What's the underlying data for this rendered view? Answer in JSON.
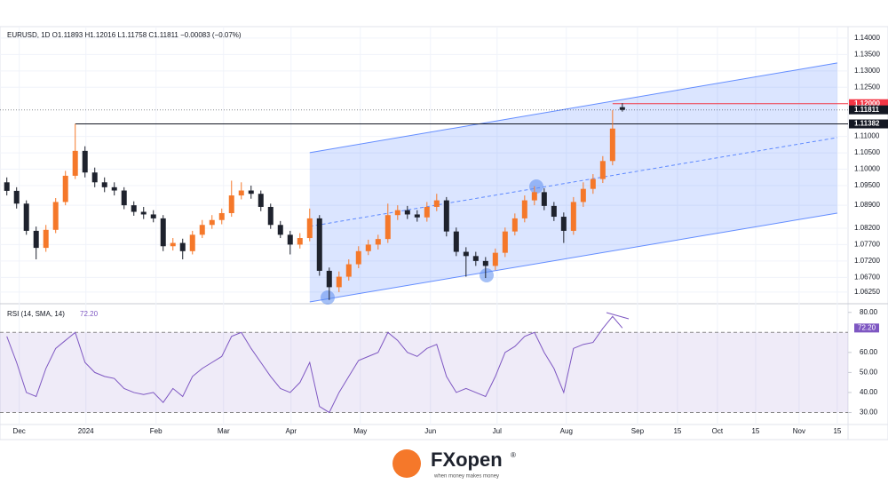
{
  "chart_data": {
    "type": "candlestick",
    "header": "EURUSD, 1D  O1.11893  H1.12016  L1.11758  C1.11811  −0.00083 (−0.07%)",
    "open": [
      1.096,
      1.0934,
      1.0895,
      1.0812,
      1.076,
      1.0815,
      1.09,
      1.098,
      1.1056,
      1.099,
      1.096,
      1.0945,
      1.0935,
      1.089,
      1.087,
      1.0862,
      1.085,
      1.0765,
      1.0775,
      1.075,
      1.08,
      1.083,
      1.0845,
      1.0866,
      1.092,
      1.0935,
      1.0925,
      1.0885,
      1.083,
      1.08,
      1.077,
      1.079,
      1.085,
      1.069,
      1.064,
      1.0672,
      1.071,
      1.075,
      1.077,
      1.0787,
      1.086,
      1.0875,
      1.0862,
      1.0853,
      1.0885,
      1.0905,
      1.081,
      1.0748,
      1.0735,
      1.072,
      1.0705,
      1.0745,
      1.081,
      1.085,
      1.0905,
      1.093,
      1.0888,
      1.0855,
      1.0812,
      1.09,
      1.094,
      1.097,
      1.1025,
      1.11893
    ],
    "high": [
      1.0975,
      1.0945,
      1.0905,
      1.0825,
      1.083,
      1.0912,
      1.0995,
      1.11382,
      1.107,
      1.1005,
      1.0975,
      1.096,
      1.0945,
      1.0902,
      1.0885,
      1.0875,
      1.086,
      1.079,
      1.0788,
      1.0812,
      1.0845,
      1.086,
      1.088,
      1.0965,
      1.096,
      1.095,
      1.0935,
      1.0895,
      1.0842,
      1.0812,
      1.0805,
      1.088,
      1.086,
      1.07,
      1.0688,
      1.0725,
      1.0765,
      1.0785,
      1.08,
      1.0895,
      1.089,
      1.0888,
      1.0875,
      1.09,
      1.0925,
      1.0915,
      1.0822,
      1.0762,
      1.0748,
      1.0732,
      1.0758,
      1.0822,
      1.0865,
      1.092,
      1.0948,
      1.0942,
      1.09,
      1.0868,
      1.0915,
      1.096,
      1.0985,
      1.104,
      1.118,
      1.12016
    ],
    "low": [
      1.092,
      1.088,
      1.08,
      1.0725,
      1.0748,
      1.0805,
      1.089,
      1.097,
      1.0975,
      1.0945,
      1.093,
      1.092,
      1.0878,
      1.0858,
      1.0848,
      1.0838,
      1.075,
      1.0752,
      1.0725,
      1.074,
      1.079,
      1.0818,
      1.0832,
      1.0855,
      1.0908,
      1.091,
      1.0872,
      1.0818,
      1.079,
      1.074,
      1.0758,
      1.078,
      1.0675,
      1.0601,
      1.0625,
      1.066,
      1.0698,
      1.0738,
      1.0755,
      1.0775,
      1.0845,
      1.0848,
      1.084,
      1.084,
      1.0872,
      1.0795,
      1.0735,
      1.0672,
      1.0705,
      1.0668,
      1.0692,
      1.0732,
      1.0798,
      1.0838,
      1.089,
      1.0875,
      1.0842,
      1.0775,
      1.08,
      1.0885,
      1.0925,
      1.0958,
      1.1012,
      1.11758
    ],
    "close": [
      1.0934,
      1.0895,
      1.0812,
      1.076,
      1.0815,
      1.09,
      1.098,
      1.1056,
      1.099,
      1.096,
      1.0945,
      1.0935,
      1.089,
      1.087,
      1.0862,
      1.085,
      1.0765,
      1.0775,
      1.075,
      1.08,
      1.083,
      1.0845,
      1.0866,
      1.092,
      1.0935,
      1.0925,
      1.0885,
      1.083,
      1.08,
      1.077,
      1.079,
      1.085,
      1.069,
      1.064,
      1.0672,
      1.071,
      1.075,
      1.077,
      1.0787,
      1.086,
      1.0875,
      1.0862,
      1.0853,
      1.0885,
      1.0905,
      1.081,
      1.0748,
      1.0735,
      1.072,
      1.0705,
      1.0745,
      1.081,
      1.085,
      1.0905,
      1.093,
      1.0888,
      1.0855,
      1.0812,
      1.09,
      1.094,
      1.097,
      1.1025,
      1.1124,
      1.11811
    ],
    "up_color": "#f5782a",
    "down_color": "#1e222d",
    "xlim": [
      -0.7,
      86.1
    ],
    "xticks": [
      {
        "value": 1.27,
        "label": "Dec"
      },
      {
        "value": 8.09,
        "label": "2024"
      },
      {
        "value": 15.27,
        "label": "Feb"
      },
      {
        "value": 22.18,
        "label": "Mar"
      },
      {
        "value": 29.09,
        "label": "Apr"
      },
      {
        "value": 36.18,
        "label": "May"
      },
      {
        "value": 43.36,
        "label": "Jun"
      },
      {
        "value": 50.18,
        "label": "Jul"
      },
      {
        "value": 57.27,
        "label": "Aug"
      },
      {
        "value": 64.55,
        "label": "Sep"
      },
      {
        "value": 68.64,
        "label": "15"
      },
      {
        "value": 72.73,
        "label": "Oct"
      },
      {
        "value": 76.64,
        "label": "15"
      },
      {
        "value": 81.09,
        "label": "Nov"
      },
      {
        "value": 85.0,
        "label": "15"
      }
    ],
    "ylim": [
      1.0595,
      1.1435
    ],
    "yticks": [
      {
        "value": 1.14,
        "label": "1.14000"
      },
      {
        "value": 1.135,
        "label": "1.13500"
      },
      {
        "value": 1.13,
        "label": "1.13000"
      },
      {
        "value": 1.125,
        "label": "1.12500"
      },
      {
        "value": 1.11,
        "label": "1.11000"
      },
      {
        "value": 1.105,
        "label": "1.10500"
      },
      {
        "value": 1.1,
        "label": "1.10000"
      },
      {
        "value": 1.095,
        "label": "1.09500"
      },
      {
        "value": 1.089,
        "label": "1.08900"
      },
      {
        "value": 1.082,
        "label": "1.08200"
      },
      {
        "value": 1.077,
        "label": "1.07700"
      },
      {
        "value": 1.072,
        "label": "1.07200"
      },
      {
        "value": 1.067,
        "label": "1.06700"
      },
      {
        "value": 1.0625,
        "label": "1.06250"
      }
    ],
    "price_labels": [
      {
        "value": 1.12,
        "label": "1.12000",
        "color": "#f23645",
        "start": 62,
        "line": "solid"
      },
      {
        "value": 1.11811,
        "label": "1.11811",
        "color": "#131722",
        "start": -0.7,
        "line": "dotted"
      },
      {
        "value": 1.11382,
        "label": "1.11382",
        "color": "#131722",
        "start": 7,
        "line": "solid"
      }
    ],
    "channel": {
      "x": [
        31,
        85
      ],
      "upper": [
        1.10505,
        1.13241
      ],
      "middle": [
        1.08255,
        1.10965
      ],
      "lower": [
        1.05951,
        1.08661
      ],
      "color": "#2962ff"
    },
    "rsi": {
      "title": "RSI (14, SMA, 14)",
      "last_label": "72.20",
      "color": "#7e57c2",
      "values": [
        68,
        55,
        40,
        38,
        52,
        62,
        66,
        70,
        55,
        50,
        48,
        47,
        42,
        40,
        39,
        40,
        35,
        42,
        38,
        48,
        52,
        55,
        58,
        68,
        70,
        62,
        55,
        48,
        42,
        40,
        45,
        55,
        33,
        30,
        40,
        48,
        56,
        58,
        60,
        70,
        66,
        60,
        58,
        62,
        64,
        48,
        40,
        42,
        40,
        38,
        48,
        60,
        63,
        68,
        70,
        60,
        52,
        40,
        62,
        64,
        65,
        72,
        78,
        72.2
      ],
      "ylim": [
        24,
        83
      ],
      "yticks": [
        {
          "value": 80,
          "label": "80.00"
        },
        {
          "value": 60,
          "label": "60.00"
        },
        {
          "value": 50,
          "label": "50.00"
        },
        {
          "value": 40,
          "label": "40.00"
        },
        {
          "value": 30,
          "label": "30.00"
        }
      ],
      "bands": [
        30,
        70
      ]
    }
  },
  "logo": {
    "brand": "FXopen",
    "mark": "®",
    "tagline": "when money makes money"
  }
}
